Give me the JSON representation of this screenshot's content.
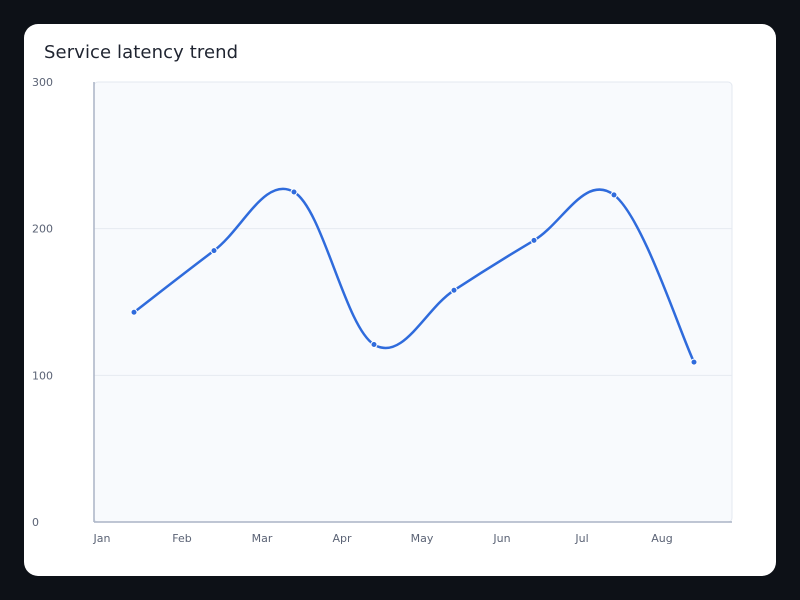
{
  "chart_data": {
    "type": "line",
    "title": "Service latency trend",
    "xlabel": "",
    "ylabel": "",
    "categories": [
      "Jan",
      "Feb",
      "Mar",
      "Apr",
      "May",
      "Jun",
      "Jul",
      "Aug"
    ],
    "series": [
      {
        "values": [
          143,
          185,
          225,
          121,
          158,
          192,
          223,
          109
        ]
      }
    ],
    "ylim": [
      0,
      300
    ],
    "yticks": [
      0,
      100,
      200,
      300
    ],
    "grid": true,
    "line_color": "#2f6bdc",
    "plot_background": "#f8fafd",
    "smooth": true
  }
}
